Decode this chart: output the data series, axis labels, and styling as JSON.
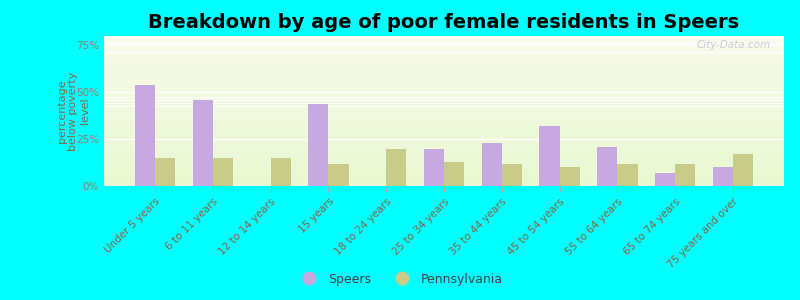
{
  "title": "Breakdown by age of poor female residents in Speers",
  "ylabel": "percentage\nbelow poverty\nlevel",
  "categories": [
    "Under 5 years",
    "6 to 11 years",
    "12 to 14 years",
    "15 years",
    "18 to 24 years",
    "25 to 34 years",
    "35 to 44 years",
    "45 to 54 years",
    "55 to 64 years",
    "65 to 74 years",
    "75 years and over"
  ],
  "speers_values": [
    54,
    46,
    0,
    44,
    0,
    20,
    23,
    32,
    21,
    7,
    10
  ],
  "pennsylvania_values": [
    15,
    15,
    15,
    12,
    20,
    13,
    12,
    10,
    12,
    12,
    17
  ],
  "speers_color": "#c8a8e0",
  "pennsylvania_color": "#c8cc88",
  "bg_color": "#00ffff",
  "ylim": [
    0,
    80
  ],
  "yticks": [
    0,
    25,
    50,
    75
  ],
  "ytick_labels": [
    "0%",
    "25%",
    "50%",
    "75%"
  ],
  "title_fontsize": 14,
  "ylabel_fontsize": 8,
  "tick_label_fontsize": 7.5,
  "legend_fontsize": 9,
  "watermark": "City-Data.com",
  "bar_width": 0.35
}
